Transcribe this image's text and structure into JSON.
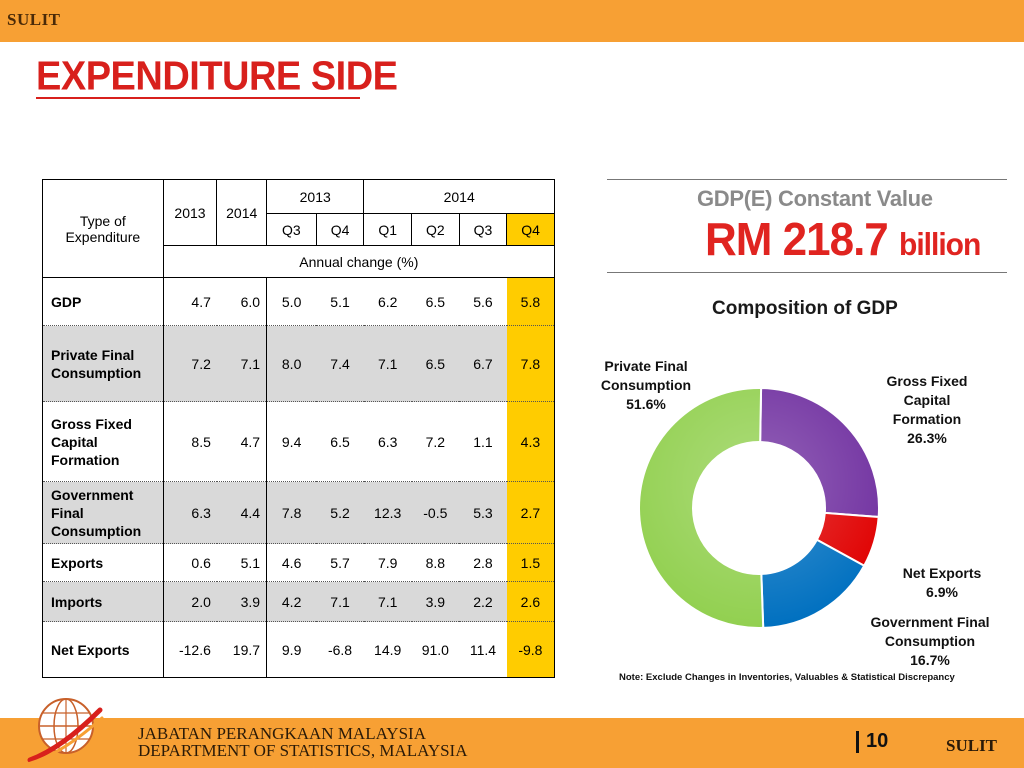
{
  "header": {
    "classification": "SULIT"
  },
  "title": "EXPENDITURE SIDE",
  "table": {
    "type_header": [
      "Type of",
      "Expenditure"
    ],
    "annual_years": [
      "2013",
      "2014"
    ],
    "quarter_years": [
      "2013",
      "2014"
    ],
    "quarters": [
      "Q3",
      "Q4",
      "Q1",
      "Q2",
      "Q3",
      "Q4"
    ],
    "annual_change_label": "Annual change  (%)",
    "rows": [
      {
        "label": [
          "GDP"
        ],
        "y2013": "4.7",
        "y2014": "6.0",
        "q": [
          "5.0",
          "5.1",
          "6.2",
          "6.5",
          "5.6",
          "5.8"
        ],
        "shaded": false
      },
      {
        "label": [
          "Private Final",
          "Consumption"
        ],
        "y2013": "7.2",
        "y2014": "7.1",
        "q": [
          "8.0",
          "7.4",
          "7.1",
          "6.5",
          "6.7",
          "7.8"
        ],
        "shaded": true
      },
      {
        "label": [
          "Gross Fixed",
          "Capital",
          "Formation"
        ],
        "y2013": "8.5",
        "y2014": "4.7",
        "q": [
          "9.4",
          "6.5",
          "6.3",
          "7.2",
          "1.1",
          "4.3"
        ],
        "shaded": false
      },
      {
        "label": [
          "Government",
          "Final",
          "Consumption"
        ],
        "y2013": "6.3",
        "y2014": "4.4",
        "q": [
          "7.8",
          "5.2",
          "12.3",
          "-0.5",
          "5.3",
          "2.7"
        ],
        "shaded": true
      },
      {
        "label": [
          "Exports"
        ],
        "y2013": "0.6",
        "y2014": "5.1",
        "q": [
          "4.6",
          "5.7",
          "7.9",
          "8.8",
          "2.8",
          "1.5"
        ],
        "shaded": false
      },
      {
        "label": [
          "Imports"
        ],
        "y2013": "2.0",
        "y2014": "3.9",
        "q": [
          "4.2",
          "7.1",
          "7.1",
          "3.9",
          "2.2",
          "2.6"
        ],
        "shaded": true
      },
      {
        "label": [
          "Net Exports"
        ],
        "y2013": "-12.6",
        "y2014": "19.7",
        "q": [
          "9.9",
          "-6.8",
          "14.9",
          "91.0",
          "11.4",
          "-9.8"
        ],
        "shaded": false
      }
    ]
  },
  "gdp_box": {
    "label": "GDP(E) Constant Value",
    "value": "RM 218.7",
    "unit": "billion"
  },
  "chart_data": {
    "type": "pie",
    "title": "Composition of GDP",
    "slices": [
      {
        "name": "Private Final Consumption",
        "value": 51.6,
        "label": "51.6%",
        "color": "#92d050"
      },
      {
        "name": "Gross Fixed Capital Formation",
        "value": 26.3,
        "label": "26.3%",
        "color": "#7030a0"
      },
      {
        "name": "Net Exports",
        "value": 6.9,
        "label": "6.9%",
        "color": "#e00000"
      },
      {
        "name": "Government Final Consumption",
        "value": 16.7,
        "label": "16.7%",
        "color": "#0070c0"
      }
    ],
    "donut": true
  },
  "slice_labels": {
    "pfc": [
      "Private Final",
      "Consumption",
      "51.6%"
    ],
    "gfcf": [
      "Gross Fixed",
      "Capital",
      "Formation",
      "26.3%"
    ],
    "net": [
      "Net Exports",
      "6.9%"
    ],
    "gov": [
      "Government Final",
      "Consumption",
      "16.7%"
    ]
  },
  "note": "Note: Exclude Changes in Inventories, Valuables & Statistical Discrepancy",
  "footer": {
    "org_line1": "JABATAN PERANGKAAN MALAYSIA",
    "org_line2": "DEPARTMENT OF STATISTICS, MALAYSIA",
    "page": "10",
    "classification": "SULIT"
  }
}
